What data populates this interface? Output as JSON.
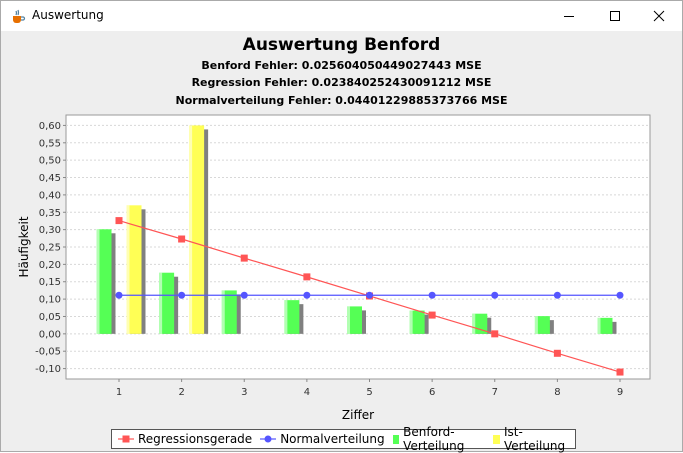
{
  "window": {
    "title": "Auswertung",
    "icon": "java-cup-icon",
    "controls": [
      "minimize-icon",
      "maximize-icon",
      "close-icon"
    ]
  },
  "chart_data": {
    "type": "bar",
    "title": "Auswertung Benford",
    "subtitles": [
      "Benford Fehler: 0.025604050449027443 MSE",
      "Regression Fehler: 0.023840252430091212 MSE",
      "Normalverteilung Fehler: 0.04401229885373766 MSE"
    ],
    "xlabel": "Ziffer",
    "ylabel": "Häufigkeit",
    "categories": [
      "1",
      "2",
      "3",
      "4",
      "5",
      "6",
      "7",
      "8",
      "9"
    ],
    "ylim": [
      -0.13,
      0.63
    ],
    "yticks": [
      "0,60",
      "0,55",
      "0,50",
      "0,45",
      "0,40",
      "0,35",
      "0,30",
      "0,25",
      "0,20",
      "0,15",
      "0,10",
      "0,05",
      "0,00",
      "-0,05",
      "-0,10"
    ],
    "ytick_values": [
      0.6,
      0.55,
      0.5,
      0.45,
      0.4,
      0.35,
      0.3,
      0.25,
      0.2,
      0.15,
      0.1,
      0.05,
      0.0,
      -0.05,
      -0.1
    ],
    "grid": true,
    "legend_position": "bottom",
    "series": [
      {
        "name": "Regressionsgerade",
        "kind": "line",
        "color": "#ff5555",
        "marker": "square",
        "values": [
          0.326,
          0.273,
          0.218,
          0.164,
          0.109,
          0.054,
          0.0,
          -0.056,
          -0.11
        ]
      },
      {
        "name": "Normalverteilung",
        "kind": "line",
        "color": "#5555ff",
        "marker": "circle",
        "values": [
          0.111,
          0.111,
          0.111,
          0.111,
          0.111,
          0.111,
          0.111,
          0.111,
          0.111
        ]
      },
      {
        "name": "Benford-Verteilung",
        "kind": "bar",
        "color": "#55ff55",
        "values": [
          0.301,
          0.176,
          0.125,
          0.097,
          0.079,
          0.067,
          0.058,
          0.051,
          0.046
        ]
      },
      {
        "name": "Ist-Verteilung",
        "kind": "bar",
        "color": "#ffff55",
        "values": [
          0.37,
          0.6,
          0,
          0,
          0,
          0,
          0,
          0,
          0
        ]
      }
    ]
  }
}
